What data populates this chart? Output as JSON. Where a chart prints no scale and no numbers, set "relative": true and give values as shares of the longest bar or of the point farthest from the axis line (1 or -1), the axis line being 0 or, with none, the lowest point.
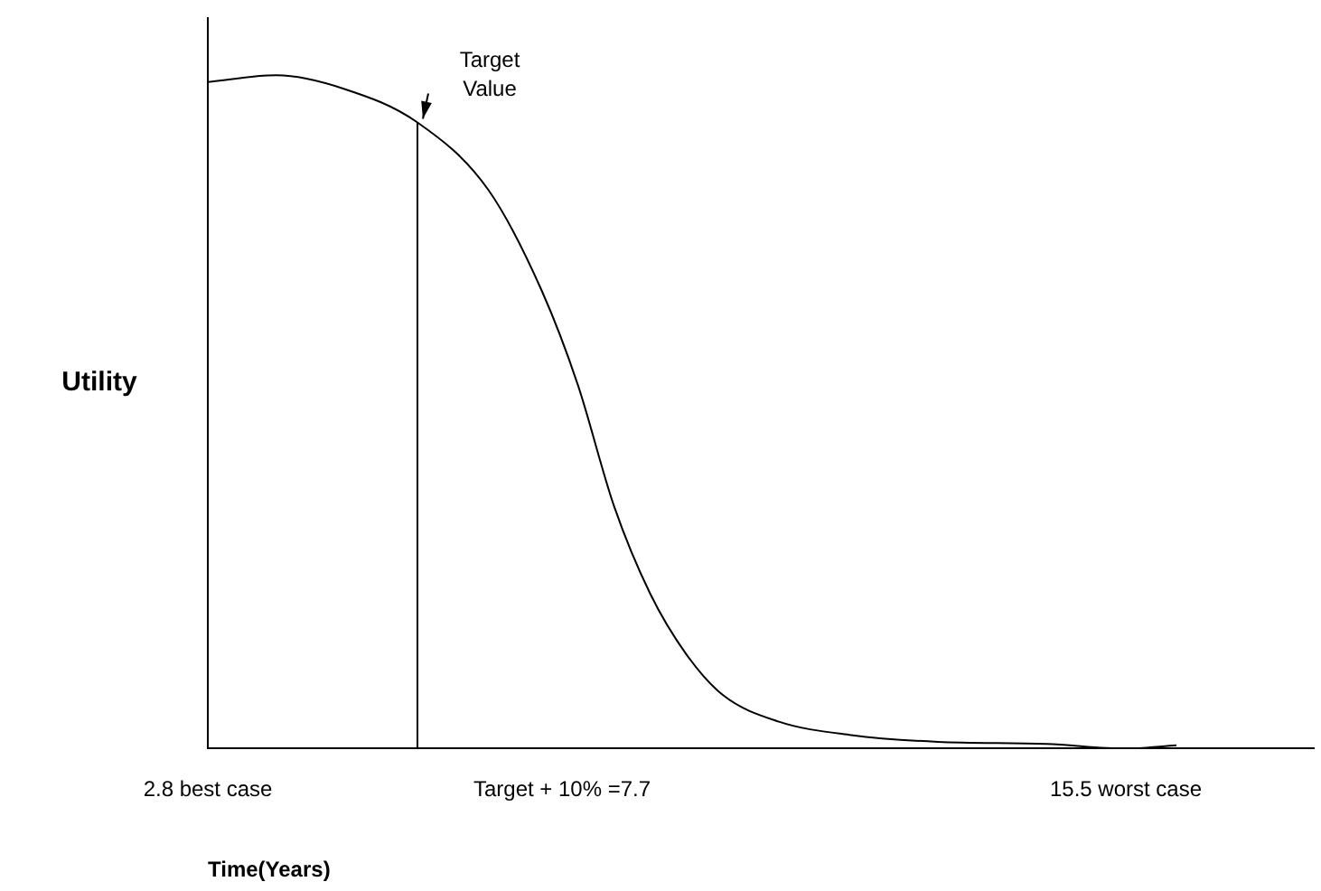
{
  "chart_data": {
    "type": "line",
    "relative": true,
    "xlabel": "Time(Years)",
    "ylabel": "Utility",
    "xlim": [
      2.8,
      18.1
    ],
    "xticks": [
      {
        "value": 2.8,
        "label": "2.8 best case"
      },
      {
        "value": 7.7,
        "label": "Target + 10% =7.7"
      },
      {
        "value": 15.5,
        "label": "15.5 worst case"
      }
    ],
    "series": [
      {
        "color": "#000000",
        "x": [
          2.8,
          3.75,
          4.68,
          5.7,
          6.68,
          7.42,
          7.92,
          8.42,
          8.92,
          9.42,
          9.92,
          10.7,
          11.7,
          12.9,
          14.4,
          15.5,
          16.2
        ],
        "values": [
          0.99,
          1,
          0.98,
          0.93,
          0.83,
          0.68,
          0.54,
          0.36,
          0.23,
          0.14,
          0.08,
          0.04,
          0.02,
          0.01,
          0.007,
          0,
          0.005
        ]
      },
      {
        "color": "#000000",
        "x": [
          5.7,
          5.7
        ],
        "values": [
          0,
          0.93
        ]
      }
    ],
    "annotations": [
      {
        "text": "Target Value",
        "x": 5.7,
        "y": 0.93
      }
    ],
    "grid": false,
    "legend": false,
    "marker": "none",
    "line_style": "solid"
  }
}
